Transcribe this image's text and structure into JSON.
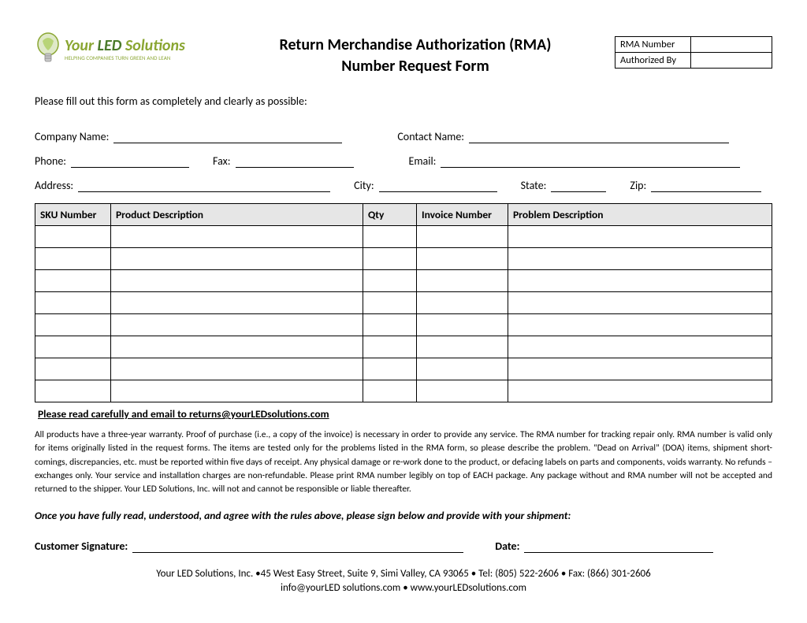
{
  "logo": {
    "line1_your": "Your",
    "line1_led": " LED ",
    "line1_sol": "Solutions",
    "tagline": "HELPING COMPANIES TURN GREEN AND LEAN"
  },
  "title": {
    "line1": "Return Merchandise Authorization (RMA)",
    "line2": "Number Request Form"
  },
  "meta": {
    "rma_label": "RMA Number",
    "rma_value": "",
    "auth_label": "Authorized By",
    "auth_value": ""
  },
  "instruction": "Please fill out this form as completely and clearly as possible:",
  "fields": {
    "company_label": "Company Name:",
    "contact_label": "Contact Name:",
    "phone_label": "Phone:",
    "fax_label": "Fax:",
    "email_label": "Email:",
    "address_label": "Address:",
    "city_label": "City:",
    "state_label": "State:",
    "zip_label": "Zip:"
  },
  "table": {
    "columns": [
      "SKU Number",
      "Product Description",
      "Qty",
      "Invoice Number",
      "Problem Description"
    ],
    "col_widths": [
      "96px",
      "320px",
      "68px",
      "116px",
      "auto"
    ],
    "row_count": 8,
    "header_bg": "#e6e6e6",
    "border_color": "#000000"
  },
  "notice": "Please read carefully and email to returns@yourLEDsolutions.com",
  "terms": "All products have a three-year warranty.  Proof of purchase (i.e., a copy of the invoice) is necessary in order to provide any service.  The RMA number for tracking repair only.  RMA number is valid only for items originally listed in the request forms.  The items are tested only for the problems listed in the RMA form, so please describe the problem.  “Dead on Arrival” (DOA) items, shipment short-comings, discrepancies, etc. must be reported within five days of receipt.  Any physical damage or re-work done to the product, or defacing labels on parts and components, voids warranty.  No refunds – exchanges only.  Your service and installation charges are non-refundable.  Please print RMA number legibly on top of EACH package.  Any package without and RMA number will not be accepted and returned to the shipper.  Your LED Solutions, Inc. will not and cannot be responsible or liable thereafter.",
  "agree": "Once you have fully read, understood, and agree with the rules above, please sign below and provide with your shipment:",
  "signature": {
    "sig_label": "Customer Signature:",
    "date_label": "Date:"
  },
  "footer": {
    "line1": "Your LED Solutions, Inc. •45 West Easy Street, Suite 9, Simi Valley, CA  93065 • Tel: (805) 522-2606 • Fax: (866) 301-2606",
    "line2": "info@yourLED solutions.com • www.yourLEDsolutions.com"
  },
  "colors": {
    "background": "#ffffff",
    "text": "#000000",
    "logo_green_light": "#8aa632",
    "logo_green_dark": "#4a7a2a"
  }
}
